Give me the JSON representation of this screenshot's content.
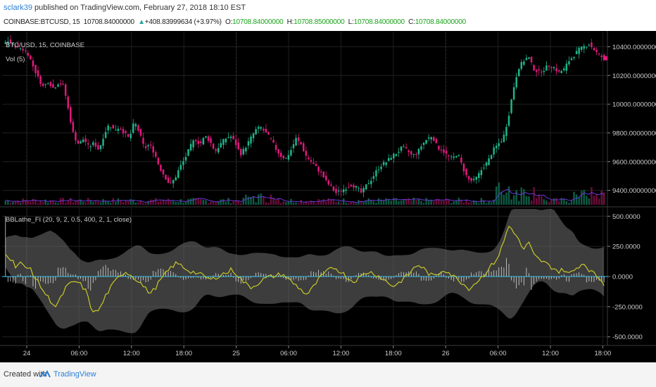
{
  "publish": {
    "user": "sclark39",
    "rest": " published on TradingView.com, February 27, 2018 18:10 EST"
  },
  "symbol_line": {
    "symbol": "COINBASE:BTCUSD, 15",
    "last": "10708.84000000",
    "arrow": "▲",
    "change": "+408.83999634 (+3.97%)",
    "o_label": "O:",
    "o": "10708.84000000",
    "h_label": "H:",
    "h": "10708.85000000",
    "l_label": "L:",
    "l": "10708.84000000",
    "c_label": "C:",
    "c": "10708.84000000"
  },
  "pane_main": {
    "title": "BTC/USD, 15, COINBASE",
    "vol": "Vol (5)",
    "y_ticks": [
      "10400.00000000",
      "10200.00000000",
      "10000.00000000",
      "9800.000000000",
      "9600.000000000",
      "9400.000000000"
    ]
  },
  "pane_indicator": {
    "title": "BBLathe_FI (20, 9, 2, 0.5, 400, 2, 1, close)",
    "y_ticks": [
      "500.0000",
      "250.0000",
      "0.0000",
      "-250.0000",
      "-500.0000"
    ]
  },
  "x_ticks": [
    "24",
    "06:00",
    "12:00",
    "18:00",
    "25",
    "06:00",
    "12:00",
    "18:00",
    "26",
    "06:00",
    "12:00",
    "18:00"
  ],
  "footer": {
    "created": "Created with",
    "brand": "TradingView"
  },
  "colors": {
    "bg": "#000000",
    "up": "#1fb58a",
    "down": "#e0197d",
    "indicator_line": "#c8c82a",
    "band": "#6f6f6f",
    "zero_line": "#2aa9c9",
    "vol_ma": "#6a35d6"
  },
  "chart_data": {
    "type": "candlestick",
    "price_ylim": [
      9300,
      10500
    ],
    "price_path": [
      10420,
      10440,
      10410,
      10400,
      10380,
      10350,
      10260,
      10180,
      10120,
      10160,
      10110,
      10150,
      10130,
      9950,
      9780,
      9720,
      9760,
      9700,
      9730,
      9680,
      9790,
      9860,
      9820,
      9840,
      9800,
      9760,
      9880,
      9800,
      9690,
      9720,
      9660,
      9560,
      9500,
      9440,
      9480,
      9560,
      9620,
      9700,
      9760,
      9720,
      9780,
      9740,
      9670,
      9720,
      9760,
      9780,
      9730,
      9650,
      9700,
      9760,
      9820,
      9840,
      9800,
      9760,
      9690,
      9640,
      9620,
      9680,
      9760,
      9720,
      9640,
      9600,
      9560,
      9520,
      9460,
      9420,
      9380,
      9400,
      9420,
      9440,
      9420,
      9380,
      9440,
      9480,
      9540,
      9580,
      9600,
      9640,
      9660,
      9700,
      9680,
      9640,
      9660,
      9720,
      9760,
      9780,
      9700,
      9680,
      9640,
      9620,
      9660,
      9560,
      9480,
      9460,
      9500,
      9560,
      9600,
      9680,
      9720,
      9760,
      9900,
      10100,
      10250,
      10300,
      10330,
      10250,
      10220,
      10240,
      10270,
      10260,
      10220,
      10240,
      10300,
      10340,
      10380,
      10400,
      10420,
      10380,
      10340,
      10320
    ],
    "indicator_ylim": [
      -560,
      560
    ],
    "indicator_path": [
      200,
      150,
      90,
      120,
      60,
      70,
      -20,
      -80,
      -150,
      -200,
      -250,
      -180,
      -90,
      -60,
      -40,
      -70,
      -120,
      -260,
      -300,
      -250,
      -150,
      -90,
      -30,
      20,
      40,
      10,
      -20,
      -60,
      -110,
      -140,
      -80,
      -20,
      30,
      80,
      110,
      90,
      60,
      40,
      30,
      10,
      -10,
      -30,
      0,
      20,
      30,
      60,
      20,
      -30,
      -70,
      -90,
      -60,
      -30,
      -10,
      0,
      10,
      20,
      -10,
      -50,
      -80,
      -120,
      -150,
      -100,
      -40,
      10,
      40,
      80,
      60,
      30,
      -10,
      -40,
      -20,
      10,
      40,
      30,
      10,
      -20,
      -50,
      -80,
      -60,
      -20,
      10,
      60,
      100,
      70,
      30,
      0,
      20,
      60,
      40,
      0,
      -20,
      -60,
      -100,
      -70,
      -30,
      10,
      60,
      110,
      170,
      280,
      420,
      380,
      300,
      220,
      280,
      180,
      140,
      120,
      90,
      70,
      40,
      60,
      20,
      50,
      90,
      110,
      60,
      20,
      -10,
      -60
    ],
    "x_tick_labels": [
      "24",
      "06:00",
      "12:00",
      "18:00",
      "25",
      "06:00",
      "12:00",
      "18:00",
      "26",
      "06:00",
      "12:00",
      "18:00"
    ]
  }
}
